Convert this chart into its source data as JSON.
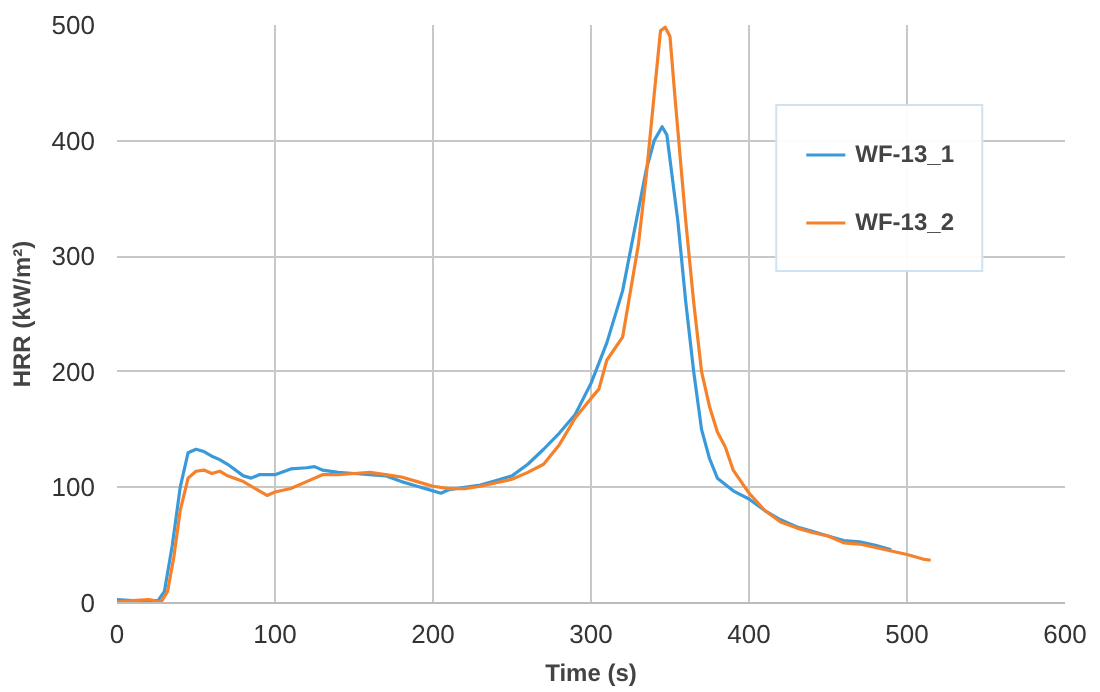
{
  "chart_data": {
    "type": "line",
    "xlabel": "Time (s)",
    "ylabel": "HRR (kW/m²)",
    "xlim": [
      0,
      600
    ],
    "ylim": [
      0,
      500
    ],
    "xticks": [
      0,
      100,
      200,
      300,
      400,
      500,
      600
    ],
    "yticks": [
      0,
      100,
      200,
      300,
      400,
      500
    ],
    "grid": true,
    "legend": "top right",
    "marker": "none",
    "line_style": "solid",
    "series": [
      {
        "name": "WF-13_1",
        "color": "#3a9ad9",
        "x": [
          0,
          10,
          20,
          26,
          30,
          35,
          40,
          45,
          50,
          55,
          60,
          65,
          70,
          80,
          85,
          90,
          100,
          110,
          120,
          125,
          130,
          140,
          150,
          160,
          170,
          180,
          190,
          200,
          205,
          210,
          220,
          230,
          240,
          250,
          260,
          270,
          280,
          290,
          300,
          310,
          320,
          330,
          335,
          340,
          345,
          348,
          355,
          360,
          365,
          370,
          375,
          380,
          390,
          400,
          410,
          420,
          430,
          440,
          450,
          460,
          470,
          480,
          490
        ],
        "values": [
          3,
          2,
          2,
          2,
          10,
          50,
          100,
          130,
          133,
          131,
          127,
          124,
          120,
          110,
          108,
          111,
          111,
          116,
          117,
          118,
          115,
          113,
          112,
          111,
          110,
          105,
          101,
          97,
          95,
          98,
          100,
          102,
          106,
          110,
          120,
          133,
          147,
          163,
          190,
          225,
          270,
          340,
          375,
          400,
          412,
          405,
          330,
          260,
          200,
          150,
          125,
          108,
          97,
          90,
          80,
          72,
          66,
          62,
          58,
          54,
          53,
          50,
          46
        ]
      },
      {
        "name": "WF-13_2",
        "color": "#f5812a",
        "x": [
          0,
          10,
          20,
          28,
          32,
          36,
          40,
          45,
          50,
          55,
          60,
          65,
          70,
          80,
          90,
          95,
          100,
          110,
          120,
          130,
          140,
          150,
          160,
          170,
          180,
          190,
          200,
          210,
          220,
          230,
          240,
          250,
          260,
          270,
          280,
          290,
          300,
          305,
          310,
          320,
          330,
          335,
          340,
          344,
          347,
          350,
          353,
          360,
          365,
          370,
          375,
          380,
          385,
          390,
          400,
          410,
          420,
          430,
          440,
          450,
          460,
          470,
          480,
          490,
          500,
          510,
          515
        ],
        "values": [
          1,
          2,
          3,
          1,
          10,
          40,
          80,
          108,
          114,
          115,
          112,
          114,
          110,
          105,
          97,
          93,
          96,
          99,
          105,
          111,
          111,
          112,
          113,
          111,
          109,
          105,
          101,
          99,
          99,
          101,
          104,
          107,
          113,
          120,
          137,
          160,
          177,
          185,
          210,
          230,
          310,
          370,
          440,
          495,
          498,
          490,
          440,
          330,
          260,
          200,
          170,
          148,
          135,
          115,
          95,
          80,
          70,
          65,
          61,
          58,
          52,
          51,
          48,
          45,
          42,
          38,
          37
        ]
      }
    ]
  }
}
